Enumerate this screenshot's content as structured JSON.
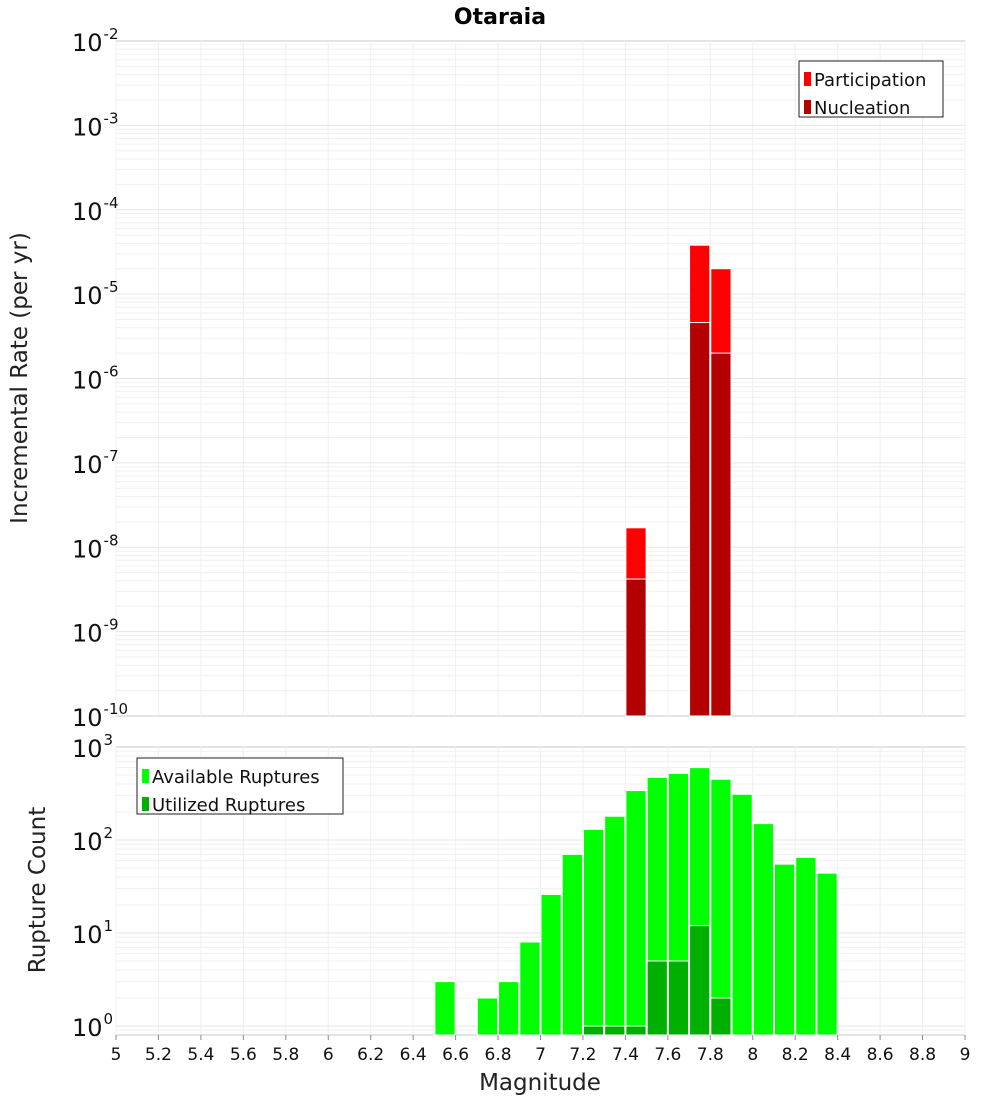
{
  "title": "Otaraia",
  "colors": {
    "participation": "#ff0000",
    "nucleation": "#b30000",
    "available": "#00ff00",
    "utilized": "#00b000"
  },
  "chart_data": [
    {
      "type": "bar",
      "name": "rate-plot",
      "ylabel": "Incremental Rate (per yr)",
      "yscale": "log",
      "ylim": [
        1e-10,
        0.01
      ],
      "xlim": [
        5,
        9
      ],
      "ytick_exponents": [
        "-10",
        "-9",
        "-8",
        "-7",
        "-6",
        "-5",
        "-4",
        "-3",
        "-2"
      ],
      "ytick_base": "10",
      "legend_position": "top-right",
      "series": [
        {
          "name": "Participation",
          "x": [
            7.45,
            7.75,
            7.85
          ],
          "values": [
            1.7e-08,
            3.8e-05,
            2e-05
          ]
        },
        {
          "name": "Nucleation",
          "x": [
            7.45,
            7.75,
            7.85
          ],
          "values": [
            4.2e-09,
            4.6e-06,
            2e-06
          ]
        }
      ]
    },
    {
      "type": "bar",
      "name": "count-plot",
      "xlabel": "Magnitude",
      "ylabel": "Rupture Count",
      "yscale": "log",
      "ylim": [
        0.8,
        1000
      ],
      "xlim": [
        5,
        9
      ],
      "ytick_exponents": [
        "0",
        "1",
        "2",
        "3"
      ],
      "ytick_base": "10",
      "xticks": [
        "5",
        "5.2",
        "5.4",
        "5.6",
        "5.8",
        "6",
        "6.2",
        "6.4",
        "6.6",
        "6.8",
        "7",
        "7.2",
        "7.4",
        "7.6",
        "7.8",
        "8",
        "8.2",
        "8.4",
        "8.6",
        "8.8",
        "9"
      ],
      "legend_position": "top-left",
      "series": [
        {
          "name": "Available Ruptures",
          "x": [
            6.55,
            6.75,
            6.85,
            6.95,
            7.05,
            7.15,
            7.25,
            7.35,
            7.45,
            7.55,
            7.65,
            7.75,
            7.85,
            7.95,
            8.05,
            8.15,
            8.25,
            8.35
          ],
          "values": [
            3,
            2,
            3,
            8,
            26,
            70,
            130,
            180,
            340,
            470,
            520,
            600,
            450,
            310,
            150,
            55,
            65,
            44
          ]
        },
        {
          "name": "Utilized Ruptures",
          "x": [
            7.25,
            7.35,
            7.45,
            7.55,
            7.65,
            7.75,
            7.85
          ],
          "values": [
            1,
            1,
            1,
            5,
            5,
            12,
            2
          ]
        }
      ]
    }
  ]
}
